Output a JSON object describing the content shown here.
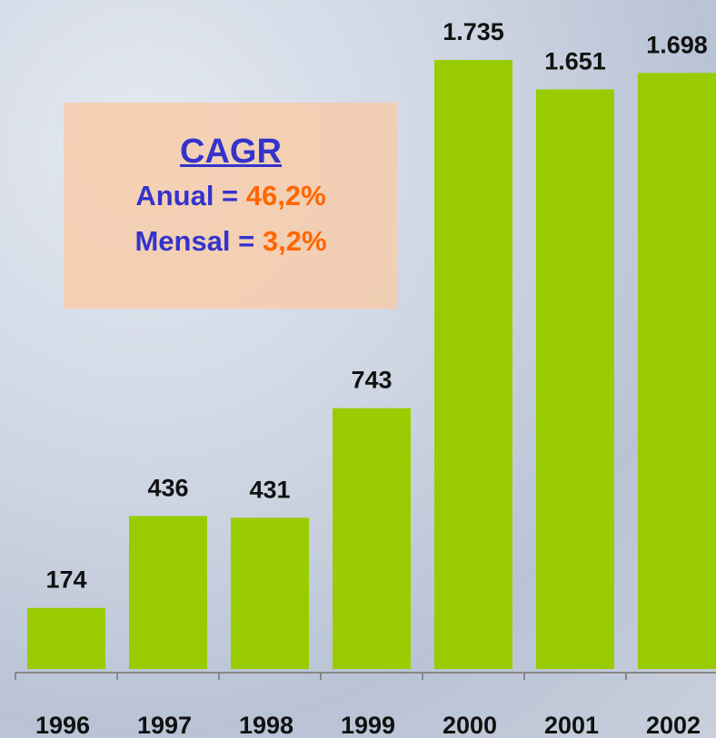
{
  "chart_data": {
    "type": "bar",
    "categories": [
      "1996",
      "1997",
      "1998",
      "1999",
      "2000",
      "2001",
      "2002"
    ],
    "values": [
      174,
      436,
      431,
      743,
      1735,
      1651,
      1698
    ],
    "value_labels": [
      "174",
      "436",
      "431",
      "743",
      "1.735",
      "1.651",
      "1.698"
    ],
    "color": "#99cc00",
    "annotation": {
      "title": "CAGR",
      "lines": [
        {
          "label": "Anual =",
          "value": "46,2%"
        },
        {
          "label": "Mensal =",
          "value": "3,2%"
        }
      ]
    }
  }
}
